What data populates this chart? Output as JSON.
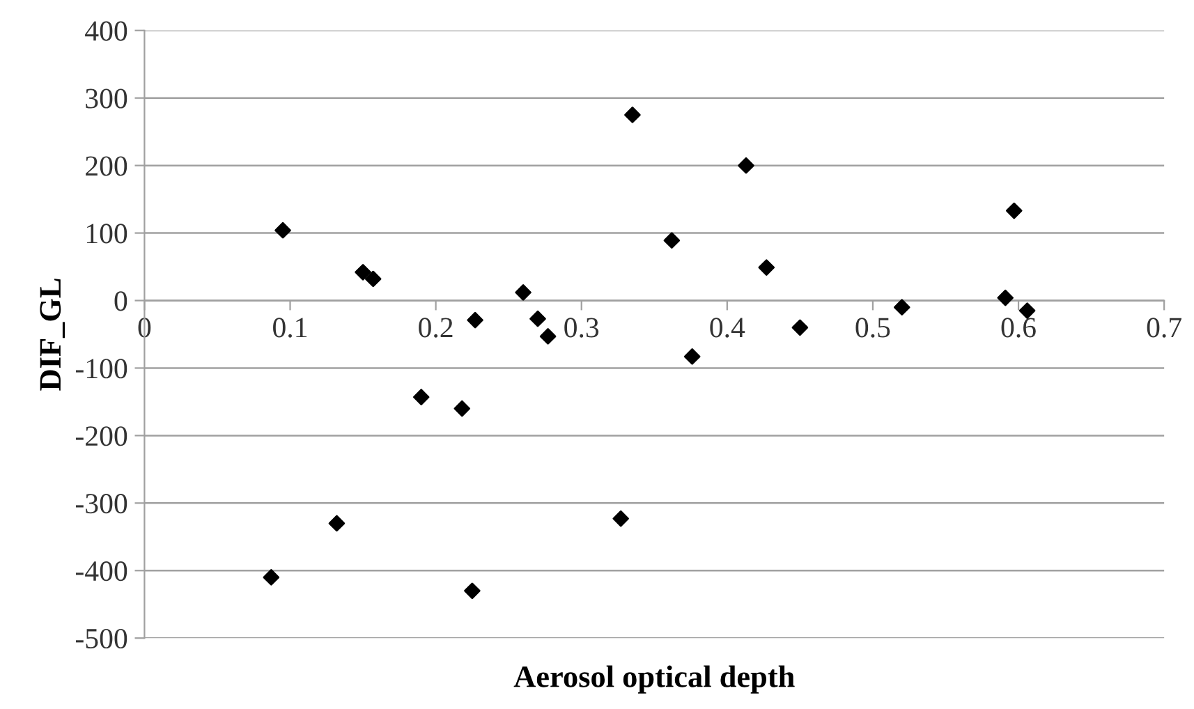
{
  "chart_data": {
    "type": "scatter",
    "xlabel": "Aerosol optical depth",
    "ylabel": "DIF_GL",
    "x": [
      0.087,
      0.095,
      0.132,
      0.15,
      0.157,
      0.19,
      0.218,
      0.225,
      0.227,
      0.26,
      0.27,
      0.277,
      0.327,
      0.335,
      0.362,
      0.376,
      0.413,
      0.427,
      0.45,
      0.52,
      0.591,
      0.597,
      0.606
    ],
    "values": [
      -410,
      104,
      -330,
      42,
      32,
      -143,
      -160,
      -430,
      -29,
      12,
      -27,
      -53,
      -323,
      275,
      89,
      -83,
      200,
      49,
      -40,
      -10,
      4,
      133,
      -15
    ],
    "color": "#000000",
    "marker": "diamond",
    "grid": "y",
    "xlim": [
      0,
      0.7
    ],
    "xticks": [
      0,
      0.1,
      0.2,
      0.3,
      0.4,
      0.5,
      0.6,
      0.7
    ],
    "ylim": [
      -500,
      400
    ],
    "yticks": [
      -500,
      -400,
      -300,
      -200,
      -100,
      0,
      100,
      200,
      300,
      400
    ]
  }
}
